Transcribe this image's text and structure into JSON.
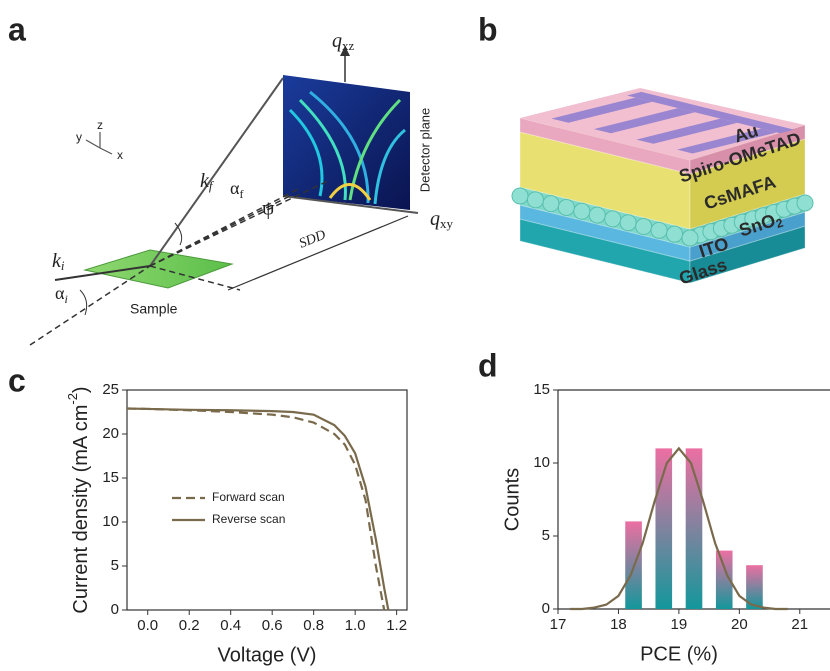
{
  "panels": {
    "a": "a",
    "b": "b",
    "c": "c",
    "d": "d"
  },
  "diagram_a": {
    "q_xz": {
      "symbol": "q",
      "subscript": "xz"
    },
    "q_xy": {
      "symbol": "q",
      "subscript": "xy"
    },
    "k_f": {
      "symbol": "k",
      "subscript": "f"
    },
    "k_i": {
      "symbol": "k",
      "subscript": "i"
    },
    "alpha_f": {
      "symbol": "α",
      "subscript": "f"
    },
    "alpha_i": {
      "symbol": "α",
      "subscript": "i"
    },
    "psi": "ψ",
    "sdd": "SDD",
    "sample": "Sample",
    "detector": "Detector plane",
    "axes": {
      "x": "x",
      "y": "y",
      "z": "z"
    }
  },
  "diagram_b": {
    "layers": [
      {
        "text": "Au"
      },
      {
        "text": "Spiro-OMeTAD"
      },
      {
        "text": "CsMAFA"
      },
      {
        "text": "SnO",
        "subscript": "2"
      },
      {
        "text": "ITO"
      },
      {
        "text": "Glass"
      }
    ]
  },
  "chart_data": [
    {
      "type": "line",
      "xlabel": "Voltage (V)",
      "ylabel": {
        "text": "Current density (mA cm",
        "superscript": "-2",
        "suffix": ")"
      },
      "x": [
        -0.1,
        0,
        0.2,
        0.4,
        0.6,
        0.7,
        0.8,
        0.9,
        0.95,
        1.0,
        1.05,
        1.1,
        1.14,
        1.16
      ],
      "series": [
        {
          "name": "Forward scan",
          "color": "#7a6a4c",
          "dash": true,
          "values": [
            22.9,
            22.85,
            22.7,
            22.5,
            22.2,
            21.9,
            21.3,
            20.0,
            18.8,
            16.5,
            12.5,
            5,
            0,
            null
          ]
        },
        {
          "name": "Reverse scan",
          "color": "#7a6a4c",
          "dash": false,
          "values": [
            22.9,
            22.85,
            22.75,
            22.7,
            22.6,
            22.5,
            22.2,
            21.0,
            19.8,
            17.8,
            14,
            8,
            2.5,
            0
          ]
        }
      ],
      "xlim": [
        -0.1,
        1.25
      ],
      "xticks": [
        {
          "value": 0,
          "label": "0.0"
        },
        {
          "value": 0.2,
          "label": "0.2"
        },
        {
          "value": 0.4,
          "label": "0.4"
        },
        {
          "value": 0.6,
          "label": "0.6"
        },
        {
          "value": 0.8,
          "label": "0.8"
        },
        {
          "value": 1,
          "label": "1.0"
        },
        {
          "value": 1.2,
          "label": "1.2"
        }
      ],
      "ylim": [
        0,
        25
      ],
      "yticks": [
        0,
        5,
        10,
        15,
        20,
        25
      ]
    },
    {
      "type": "histogram",
      "xlabel": "PCE (%)",
      "ylabel": "Counts",
      "bins": [
        18,
        18.5,
        19,
        19.5,
        20,
        20.5
      ],
      "values": [
        6,
        11,
        11,
        4,
        3
      ],
      "color_top": "#ec6fa2",
      "color_bottom": "#13979b",
      "fit": {
        "color": "#7a6a4c",
        "x": [
          17.2,
          17.4,
          17.6,
          17.8,
          18.0,
          18.2,
          18.4,
          18.6,
          18.8,
          19.0,
          19.2,
          19.4,
          19.6,
          19.8,
          20.0,
          20.2,
          20.4,
          20.6,
          20.8
        ],
        "values": [
          0,
          0,
          0.1,
          0.3,
          0.9,
          2.3,
          4.5,
          7.4,
          10.0,
          11,
          10.0,
          7.4,
          4.5,
          2.3,
          0.9,
          0.3,
          0.1,
          0,
          0
        ]
      },
      "xlim": [
        17,
        21.5
      ],
      "xticks": [
        17,
        18,
        19,
        20,
        21
      ],
      "ylim": [
        0,
        15
      ],
      "yticks": [
        0,
        5,
        10,
        15
      ]
    }
  ]
}
